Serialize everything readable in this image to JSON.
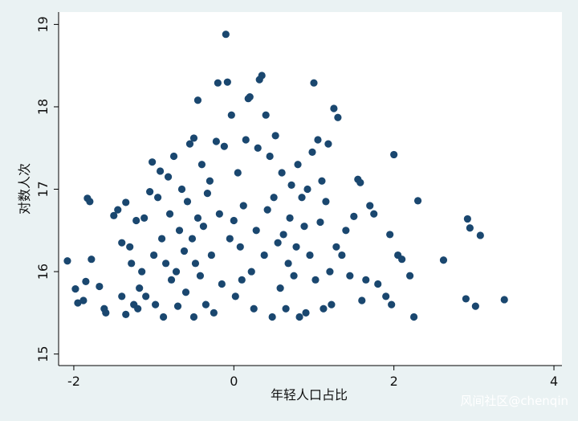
{
  "chart_data": {
    "type": "scatter",
    "x_label": "年轻人口占比",
    "y_label": "对数人次",
    "watermark": "风间社区@chenqin",
    "color": "#1a476f",
    "grid": false,
    "xlim": [
      -2.19,
      4.1
    ],
    "ylim": [
      14.86,
      19.15
    ],
    "xticks": [
      -2,
      0,
      2,
      4
    ],
    "yticks": [
      15,
      16,
      17,
      18,
      19
    ],
    "x": [
      -2.08,
      -1.98,
      -1.95,
      -1.88,
      -1.85,
      -1.83,
      -1.8,
      -1.78,
      -1.68,
      -1.62,
      -1.6,
      -1.5,
      -1.45,
      -1.4,
      -1.4,
      -1.35,
      -1.35,
      -1.3,
      -1.28,
      -1.25,
      -1.22,
      -1.2,
      -1.18,
      -1.15,
      -1.12,
      -1.1,
      -1.05,
      -1.02,
      -1.0,
      -0.98,
      -0.95,
      -0.92,
      -0.9,
      -0.88,
      -0.85,
      -0.82,
      -0.8,
      -0.78,
      -0.75,
      -0.72,
      -0.7,
      -0.68,
      -0.65,
      -0.62,
      -0.6,
      -0.58,
      -0.55,
      -0.52,
      -0.5,
      -0.5,
      -0.48,
      -0.45,
      -0.45,
      -0.42,
      -0.4,
      -0.38,
      -0.35,
      -0.33,
      -0.3,
      -0.28,
      -0.25,
      -0.22,
      -0.2,
      -0.18,
      -0.15,
      -0.12,
      -0.1,
      -0.08,
      -0.05,
      -0.03,
      0.0,
      0.02,
      0.05,
      0.08,
      0.1,
      0.12,
      0.15,
      0.18,
      0.2,
      0.22,
      0.25,
      0.28,
      0.3,
      0.32,
      0.35,
      0.38,
      0.4,
      0.42,
      0.45,
      0.48,
      0.5,
      0.52,
      0.55,
      0.58,
      0.6,
      0.62,
      0.65,
      0.68,
      0.7,
      0.72,
      0.75,
      0.78,
      0.8,
      0.82,
      0.85,
      0.88,
      0.9,
      0.92,
      0.95,
      0.98,
      1.0,
      1.02,
      1.05,
      1.08,
      1.1,
      1.12,
      1.15,
      1.18,
      1.2,
      1.22,
      1.25,
      1.28,
      1.3,
      1.35,
      1.4,
      1.45,
      1.5,
      1.55,
      1.58,
      1.6,
      1.65,
      1.7,
      1.75,
      1.8,
      1.9,
      1.95,
      1.97,
      2.0,
      2.05,
      2.1,
      2.2,
      2.25,
      2.3,
      2.62,
      2.92,
      2.9,
      2.95,
      3.02,
      3.08,
      3.38
    ],
    "values": [
      16.13,
      15.79,
      15.62,
      15.65,
      15.88,
      16.89,
      16.85,
      16.15,
      15.82,
      15.55,
      15.5,
      16.68,
      16.75,
      15.7,
      16.35,
      16.84,
      15.48,
      16.3,
      16.1,
      15.6,
      16.62,
      15.55,
      15.8,
      16.0,
      16.65,
      15.7,
      16.97,
      17.33,
      16.2,
      15.6,
      16.9,
      17.22,
      16.4,
      15.45,
      16.1,
      17.15,
      16.7,
      15.9,
      17.4,
      16.0,
      15.58,
      16.5,
      17.0,
      16.25,
      15.75,
      16.85,
      17.55,
      16.4,
      15.45,
      17.62,
      16.1,
      18.08,
      16.65,
      15.95,
      17.3,
      16.55,
      15.6,
      16.95,
      17.1,
      16.2,
      15.5,
      17.58,
      18.29,
      16.7,
      15.85,
      17.52,
      18.88,
      18.3,
      16.4,
      17.9,
      16.62,
      15.7,
      17.2,
      16.3,
      15.9,
      16.8,
      17.6,
      18.1,
      18.12,
      16.0,
      15.55,
      16.5,
      17.5,
      18.33,
      18.38,
      16.2,
      17.9,
      16.75,
      17.4,
      15.45,
      16.9,
      17.65,
      16.35,
      15.8,
      17.2,
      16.45,
      15.55,
      16.1,
      16.65,
      17.05,
      15.95,
      16.3,
      17.3,
      15.45,
      16.9,
      16.55,
      15.5,
      17.0,
      16.2,
      17.45,
      18.29,
      15.9,
      17.6,
      16.6,
      17.1,
      15.55,
      16.85,
      17.55,
      16.0,
      15.6,
      17.98,
      16.3,
      17.87,
      16.2,
      16.5,
      15.95,
      16.67,
      17.12,
      17.08,
      15.65,
      15.9,
      16.8,
      16.7,
      15.85,
      15.7,
      16.45,
      15.6,
      17.42,
      16.2,
      16.15,
      15.95,
      15.45,
      16.86,
      16.14,
      16.64,
      15.67,
      16.53,
      15.58,
      16.44,
      15.66
    ]
  }
}
